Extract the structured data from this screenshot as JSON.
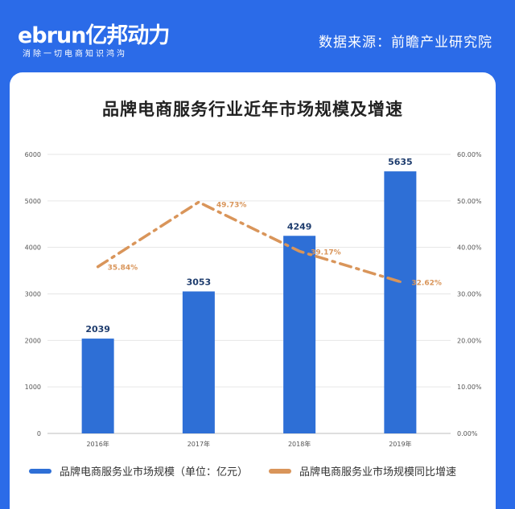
{
  "header": {
    "logo_text": "ebrun亿邦动力",
    "logo_slogan": "消除一切电商知识鸿沟",
    "source": "数据来源：前瞻产业研究院"
  },
  "colors": {
    "background": "#2b6be8",
    "bar": "#2e6fd6",
    "line": "#d9955a",
    "card": "#ffffff"
  },
  "chart_data": {
    "type": "bar",
    "title": "品牌电商服务行业近年市场规模及增速",
    "categories": [
      "2016年",
      "2017年",
      "2018年",
      "2019年"
    ],
    "series": [
      {
        "name": "品牌电商服务业市场规模（单位：亿元）",
        "type": "bar",
        "axis": "left",
        "values": [
          2039,
          3053,
          4249,
          5635
        ],
        "labels": [
          "2039",
          "3053",
          "4249",
          "5635"
        ]
      },
      {
        "name": "品牌电商服务业市场规模同比增速",
        "type": "line",
        "axis": "right",
        "values": [
          35.84,
          49.73,
          39.17,
          32.62
        ],
        "labels": [
          "35.84%",
          "49.73%",
          "39.17%",
          "32.62%"
        ]
      }
    ],
    "y_left": {
      "lim": [
        0,
        6000
      ],
      "ticks": [
        "0",
        "1000",
        "2000",
        "3000",
        "4000",
        "5000",
        "6000"
      ]
    },
    "y_right": {
      "lim": [
        0,
        60
      ],
      "ticks": [
        "0.00%",
        "10.00%",
        "20.00%",
        "30.00%",
        "40.00%",
        "50.00%",
        "60.00%"
      ]
    },
    "grid": true,
    "legend": "bottom"
  }
}
